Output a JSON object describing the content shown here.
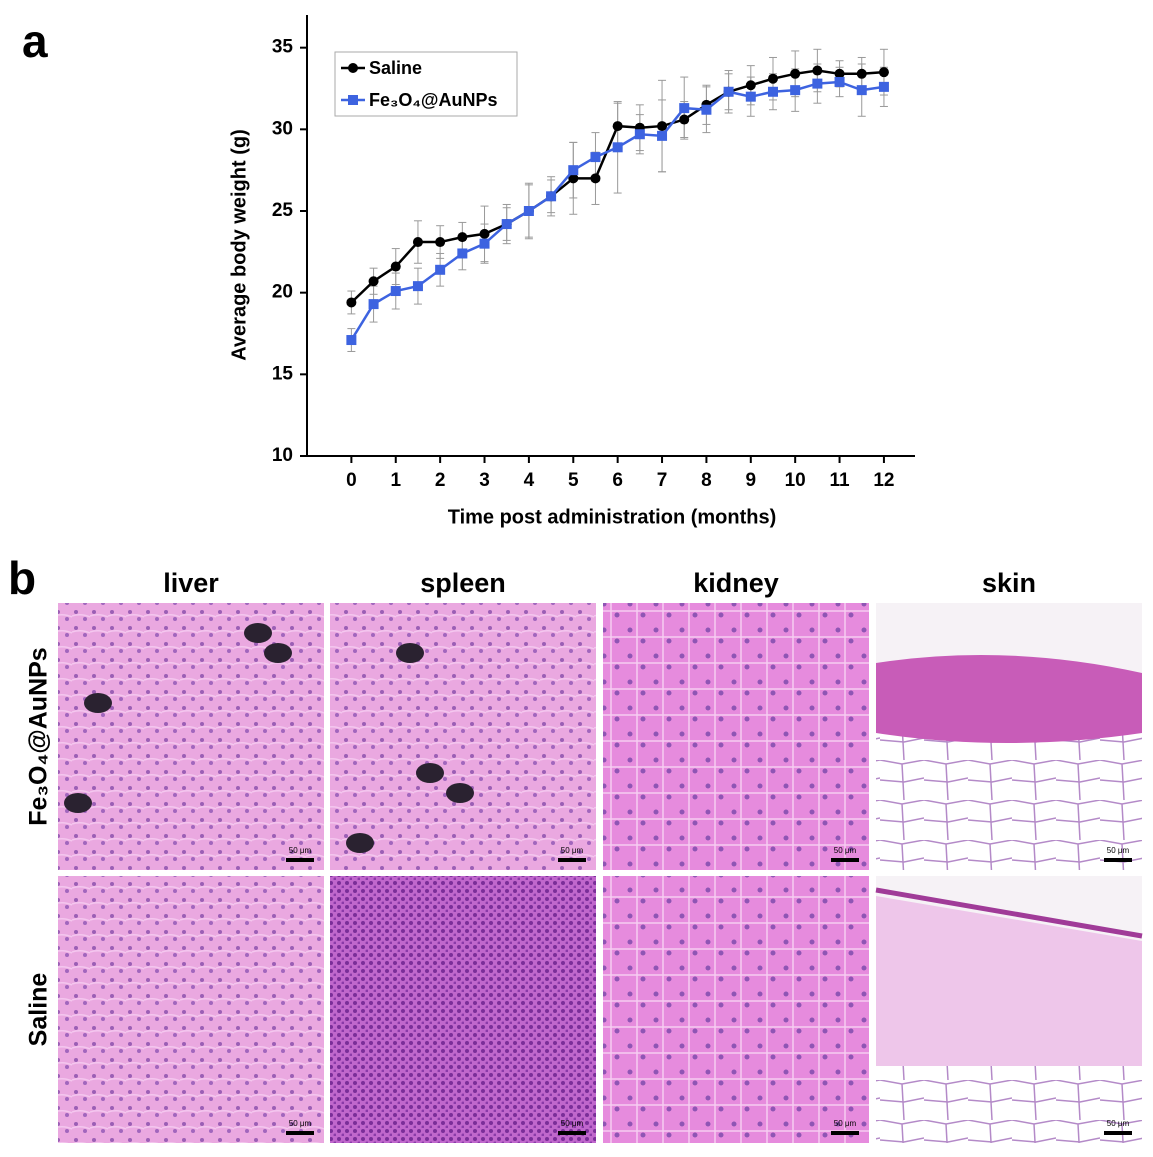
{
  "chart_data": {
    "type": "line",
    "panel_label": "a",
    "x_label": "Time post administration (months)",
    "y_label": "Average body weight (g)",
    "x": [
      0,
      0.5,
      1,
      1.5,
      2,
      2.5,
      3,
      3.5,
      4,
      4.5,
      5,
      5.5,
      6,
      6.5,
      7,
      7.5,
      8,
      8.5,
      9,
      9.5,
      10,
      10.5,
      11,
      11.5,
      12
    ],
    "series": [
      {
        "name": "Saline",
        "color": "#000000",
        "marker": "circle",
        "values": [
          19.4,
          20.7,
          21.6,
          23.1,
          23.1,
          23.4,
          23.6,
          24.2,
          25.0,
          25.9,
          27.0,
          27.0,
          30.2,
          30.1,
          30.2,
          30.6,
          31.5,
          32.3,
          32.7,
          33.1,
          33.4,
          33.6,
          33.4,
          33.4,
          33.5
        ],
        "errors": [
          0.7,
          0.8,
          1.1,
          1.3,
          1.0,
          0.9,
          1.7,
          1.2,
          1.6,
          1.0,
          2.2,
          1.6,
          1.4,
          1.4,
          2.8,
          1.1,
          1.2,
          1.1,
          1.2,
          1.3,
          1.4,
          1.3,
          0.8,
          1.0,
          1.4
        ]
      },
      {
        "name": "Fe₃O₄@AuNPs",
        "color": "#3d63e0",
        "marker": "square",
        "values": [
          17.1,
          19.3,
          20.1,
          20.4,
          21.4,
          22.4,
          23.0,
          24.2,
          25.0,
          25.9,
          27.5,
          28.3,
          28.9,
          29.7,
          29.6,
          31.3,
          31.2,
          32.3,
          32.0,
          32.3,
          32.4,
          32.8,
          32.9,
          32.4,
          32.6
        ],
        "errors": [
          0.7,
          1.1,
          1.1,
          1.1,
          1.0,
          1.0,
          1.2,
          1.0,
          1.7,
          1.2,
          1.7,
          1.5,
          2.8,
          1.2,
          2.2,
          1.9,
          1.4,
          1.3,
          1.2,
          1.1,
          1.3,
          1.2,
          0.9,
          1.6,
          1.2
        ]
      }
    ],
    "xlim": [
      -1,
      12.7
    ],
    "xticks": [
      0,
      1,
      2,
      3,
      4,
      5,
      6,
      7,
      8,
      9,
      10,
      11,
      12
    ],
    "ylim": [
      10,
      37
    ],
    "yticks": [
      10,
      15,
      20,
      25,
      30,
      35
    ],
    "legend": "upper left",
    "grid": false
  },
  "histology": {
    "panel_label": "b",
    "columns": [
      "liver",
      "spleen",
      "kidney",
      "skin"
    ],
    "rows": [
      "Fe₃O₄@AuNPs",
      "Saline"
    ],
    "scale_bar": "50 μm"
  }
}
